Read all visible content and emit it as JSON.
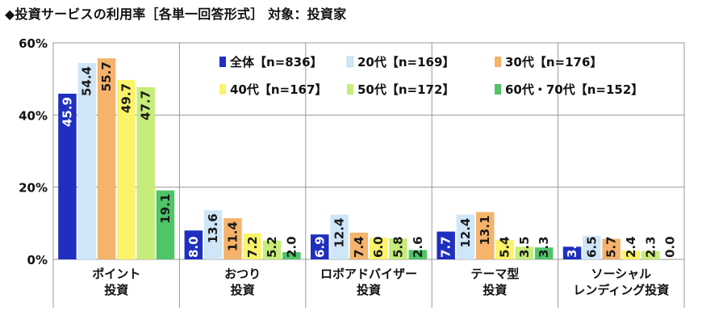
{
  "title": "◆投資サービスの利用率［各単一回答形式］ 対象：投資家",
  "chart_data": {
    "type": "bar",
    "title": "◆投資サービスの利用率［各単一回答形式］ 対象：投資家",
    "ylim": [
      0,
      60
    ],
    "yticks": [
      "0%",
      "20%",
      "40%",
      "60%"
    ],
    "ytick_values": [
      0,
      20,
      40,
      60
    ],
    "grid": true,
    "categories": [
      [
        "ポイント",
        "投資"
      ],
      [
        "おつり",
        "投資"
      ],
      [
        "ロボアドバイザー",
        "投資"
      ],
      [
        "テーマ型",
        "投資"
      ],
      [
        "ソーシャル",
        "レンディング投資"
      ]
    ],
    "series": [
      {
        "name": "全体【n=836】",
        "color": "#1f2fbf",
        "values": [
          45.9,
          8.0,
          6.9,
          7.7,
          3.5
        ]
      },
      {
        "name": "20代【n=169】",
        "color": "#cfe6f8",
        "values": [
          54.4,
          13.6,
          12.4,
          12.4,
          6.5
        ]
      },
      {
        "name": "30代【n=176】",
        "color": "#f5b36b",
        "values": [
          55.7,
          11.4,
          7.4,
          13.1,
          5.7
        ]
      },
      {
        "name": "40代【n=167】",
        "color": "#fbf36a",
        "values": [
          49.7,
          7.2,
          6.0,
          5.4,
          2.4
        ]
      },
      {
        "name": "50代【n=172】",
        "color": "#c6ec79",
        "values": [
          47.7,
          5.2,
          5.8,
          3.5,
          2.3
        ]
      },
      {
        "name": "60代・70代【n=152】",
        "color": "#4fc468",
        "values": [
          19.1,
          2.0,
          2.6,
          3.3,
          0.0
        ]
      }
    ],
    "value_labels": [
      [
        "45.9",
        "8.0",
        "6.9",
        "7.7",
        "3.5"
      ],
      [
        "54.4",
        "13.6",
        "12.4",
        "12.4",
        "6.5"
      ],
      [
        "55.7",
        "11.4",
        "7.4",
        "13.1",
        "5.7"
      ],
      [
        "49.7",
        "7.2",
        "6.0",
        "5.4",
        "2.4"
      ],
      [
        "47.7",
        "5.2",
        "5.8",
        "3.5",
        "2.3"
      ],
      [
        "19.1",
        "2.0",
        "2.6",
        "3.3",
        "0.0"
      ]
    ],
    "legend_position": "top-right"
  }
}
